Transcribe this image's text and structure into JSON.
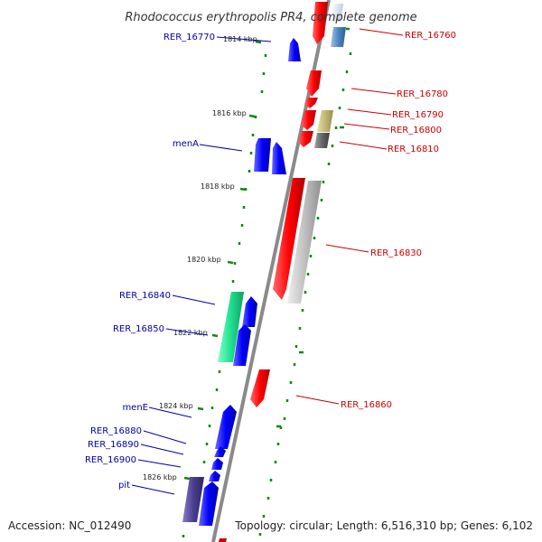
{
  "title": "Rhodococcus erythropolis PR4, complete genome",
  "footer": {
    "accession": "Accession: NC_012490",
    "topology": "Topology: circular; Length: 6,516,310 bp; Genes: 6,102"
  },
  "colors": {
    "backbone": "#888888",
    "forward_label": "#cc0000",
    "reverse_label": "#0000aa",
    "tick": "#118811"
  },
  "scale_labels": [
    "1814 kbp",
    "1816 kbp",
    "1818 kbp",
    "1820 kbp",
    "1822 kbp",
    "1824 kbp",
    "1826 kbp"
  ],
  "right_labels": [
    "RER_16760",
    "RER_16780",
    "RER_16790",
    "RER_16800",
    "RER_16810",
    "RER_16830",
    "RER_16860"
  ],
  "left_labels": [
    "RER_16770",
    "menA",
    "RER_16840",
    "RER_16850",
    "menE",
    "RER_16880",
    "RER_16890",
    "RER_16900",
    "pit"
  ]
}
